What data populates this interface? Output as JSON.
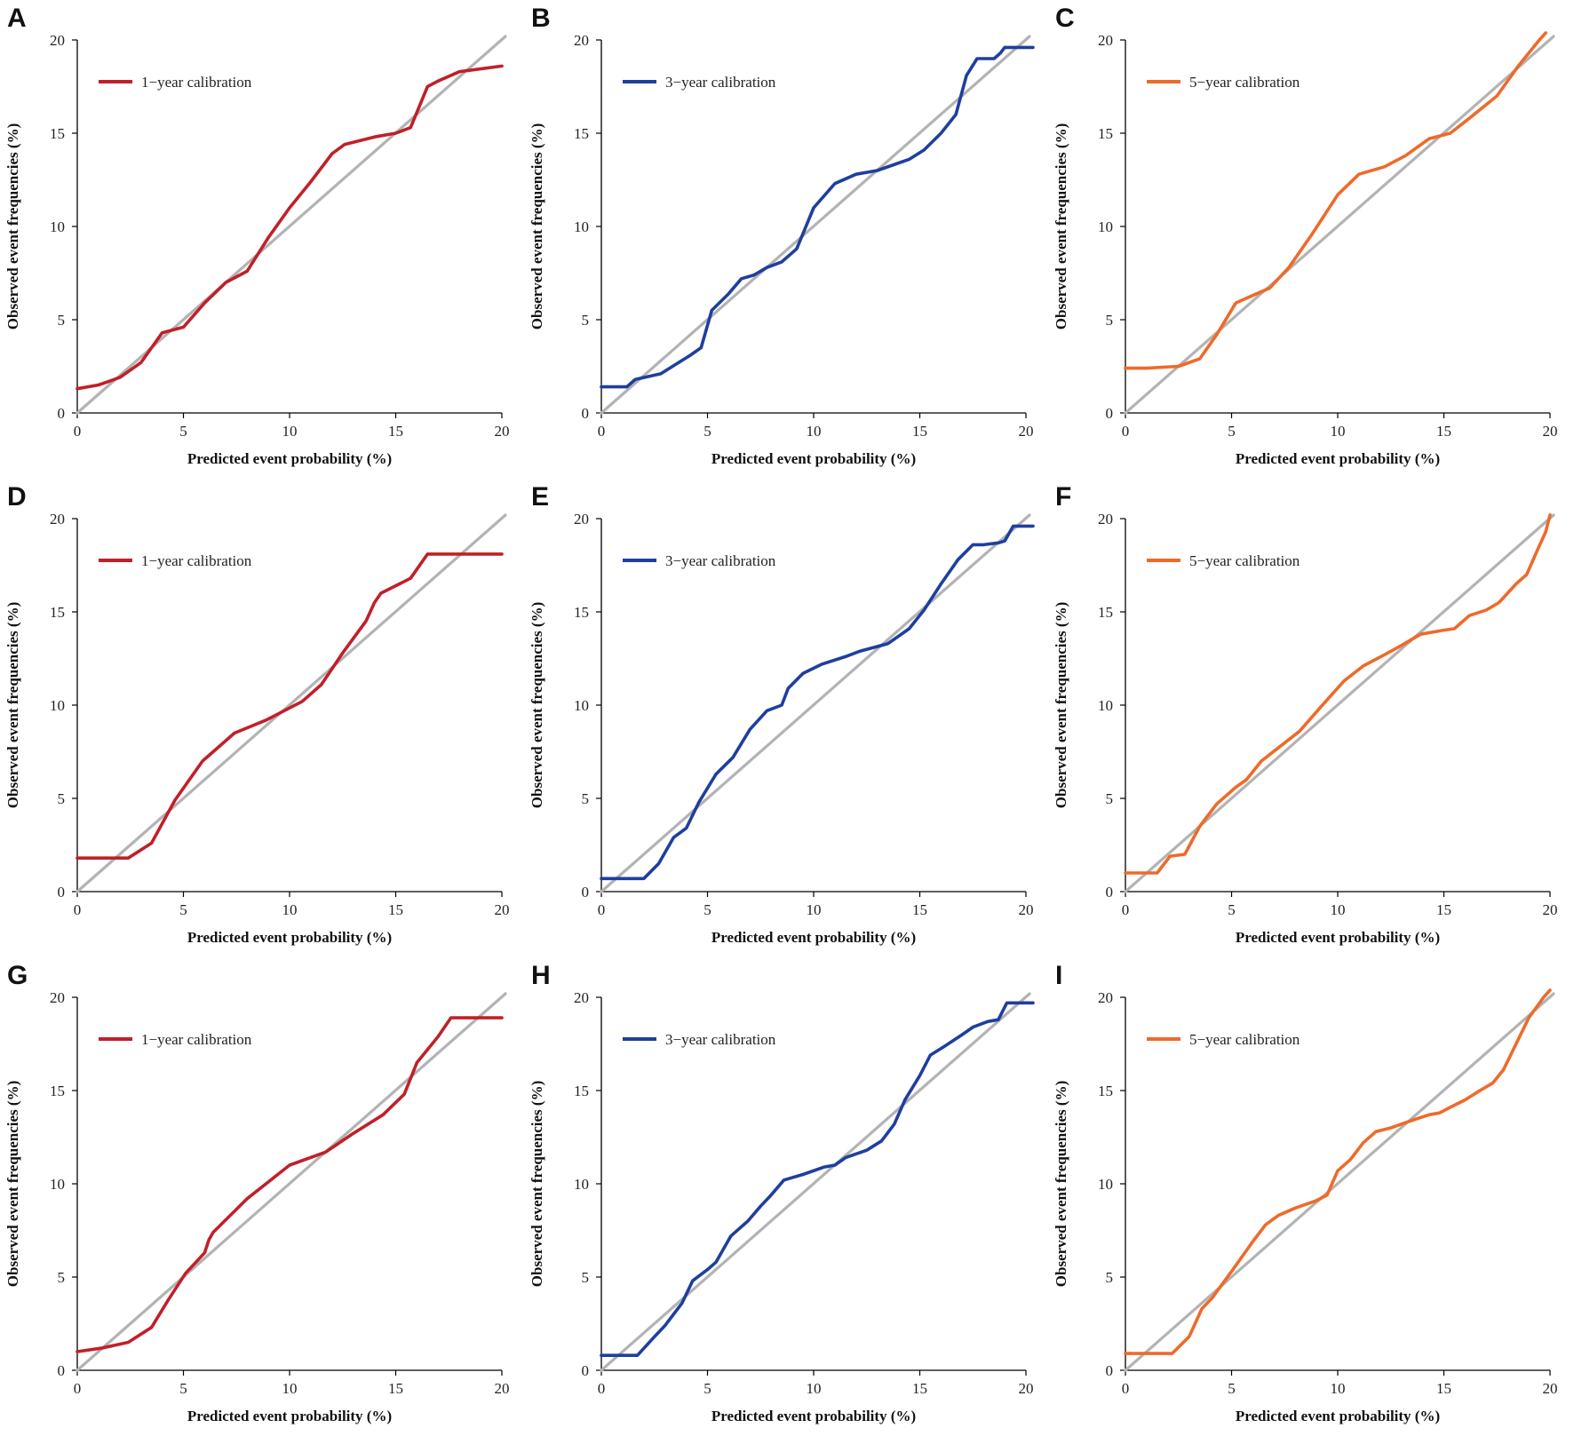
{
  "chart_data": [
    {
      "panel": "A",
      "type": "line",
      "color": "#c0202a",
      "xlabel": "Predicted event probability (%)",
      "ylabel": "Observed event frequencies (%)",
      "xlim": [
        0,
        20
      ],
      "ylim": [
        0,
        20
      ],
      "xticks": [
        "0",
        "5",
        "10",
        "15",
        "20"
      ],
      "yticks": [
        "0",
        "5",
        "10",
        "15",
        "20"
      ],
      "legend": "1−year calibration",
      "reference_line": {
        "color": "#b3b3b3",
        "x": [
          0,
          20
        ],
        "y": [
          0,
          20
        ]
      },
      "series": [
        {
          "name": "1−year calibration",
          "x": [
            0,
            1,
            2,
            3,
            4,
            5,
            6,
            7,
            8,
            9,
            10,
            11,
            12,
            12.6,
            14,
            15,
            15.7,
            16.5,
            17,
            18,
            20
          ],
          "y": [
            1.3,
            1.5,
            1.9,
            2.7,
            4.3,
            4.6,
            5.9,
            7.0,
            7.6,
            9.4,
            11.0,
            12.4,
            13.9,
            14.4,
            14.8,
            15.0,
            15.3,
            17.5,
            17.8,
            18.3,
            18.6
          ]
        }
      ]
    },
    {
      "panel": "B",
      "type": "line",
      "color": "#1e3f9e",
      "xlabel": "Predicted event probability (%)",
      "ylabel": "Observed event frequencies (%)",
      "xlim": [
        0,
        20
      ],
      "ylim": [
        0,
        20
      ],
      "xticks": [
        "0",
        "5",
        "10",
        "15",
        "20"
      ],
      "yticks": [
        "0",
        "5",
        "10",
        "15",
        "20"
      ],
      "legend": "3−year calibration",
      "reference_line": {
        "color": "#b3b3b3",
        "x": [
          0,
          20
        ],
        "y": [
          0,
          20
        ]
      },
      "series": [
        {
          "name": "3−year calibration",
          "x": [
            0,
            1.2,
            1.6,
            2.8,
            3.5,
            4.2,
            4.7,
            5.2,
            6.0,
            6.6,
            7.2,
            7.8,
            8.5,
            9.2,
            10.0,
            11.0,
            12.0,
            13.0,
            14.5,
            15.2,
            16.0,
            16.7,
            17.2,
            17.7,
            18.5,
            18.8,
            19.0,
            19.5,
            20.5
          ],
          "y": [
            1.4,
            1.4,
            1.8,
            2.1,
            2.6,
            3.1,
            3.5,
            5.5,
            6.4,
            7.2,
            7.4,
            7.8,
            8.1,
            8.8,
            11.0,
            12.3,
            12.8,
            13.0,
            13.6,
            14.1,
            15.0,
            16.0,
            18.1,
            19.0,
            19.0,
            19.3,
            19.6,
            19.6,
            19.6
          ]
        }
      ]
    },
    {
      "panel": "C",
      "type": "line",
      "color": "#ee6a2a",
      "xlabel": "Predicted event probability (%)",
      "ylabel": "Observed event frequencies (%)",
      "xlim": [
        0,
        20
      ],
      "ylim": [
        0,
        20
      ],
      "xticks": [
        "0",
        "5",
        "10",
        "15",
        "20"
      ],
      "yticks": [
        "0",
        "5",
        "10",
        "15",
        "20"
      ],
      "legend": "5−year calibration",
      "reference_line": {
        "color": "#b3b3b3",
        "x": [
          0,
          20
        ],
        "y": [
          0,
          20
        ]
      },
      "series": [
        {
          "name": "5−year calibration",
          "x": [
            0,
            1,
            2.5,
            3.5,
            4.3,
            5.2,
            6.0,
            6.8,
            7.7,
            8.8,
            10.0,
            11.0,
            12.2,
            13.2,
            14.3,
            15.3,
            16.2,
            17.5,
            18.5,
            19.5,
            19.8
          ],
          "y": [
            2.4,
            2.4,
            2.5,
            2.9,
            4.2,
            5.9,
            6.3,
            6.7,
            7.8,
            9.6,
            11.7,
            12.8,
            13.2,
            13.8,
            14.7,
            15.0,
            15.8,
            17.0,
            18.6,
            20.0,
            20.4
          ]
        }
      ]
    },
    {
      "panel": "D",
      "type": "line",
      "color": "#c0202a",
      "xlabel": "Predicted event probability (%)",
      "ylabel": "Observed event frequencies (%)",
      "xlim": [
        0,
        20
      ],
      "ylim": [
        0,
        20
      ],
      "xticks": [
        "0",
        "5",
        "10",
        "15",
        "20"
      ],
      "yticks": [
        "0",
        "5",
        "10",
        "15",
        "20"
      ],
      "legend": "1−year calibration",
      "reference_line": {
        "color": "#b3b3b3",
        "x": [
          0,
          20
        ],
        "y": [
          0,
          20
        ]
      },
      "series": [
        {
          "name": "1−year calibration",
          "x": [
            0,
            2.4,
            3.5,
            4.6,
            5.9,
            7.4,
            8.9,
            10.6,
            11.5,
            12.5,
            13.6,
            14.0,
            14.3,
            15.0,
            15.7,
            16.5,
            17.0,
            18.0,
            20.0
          ],
          "y": [
            1.8,
            1.8,
            2.6,
            4.9,
            7.0,
            8.5,
            9.2,
            10.2,
            11.1,
            12.8,
            14.5,
            15.5,
            16.0,
            16.4,
            16.8,
            18.1,
            18.1,
            18.1,
            18.1
          ]
        }
      ]
    },
    {
      "panel": "E",
      "type": "line",
      "color": "#1e3f9e",
      "xlabel": "Predicted event probability (%)",
      "ylabel": "Observed event frequencies (%)",
      "xlim": [
        0,
        20
      ],
      "ylim": [
        0,
        20
      ],
      "xticks": [
        "0",
        "5",
        "10",
        "15",
        "20"
      ],
      "yticks": [
        "0",
        "5",
        "10",
        "15",
        "20"
      ],
      "legend": "3−year calibration",
      "reference_line": {
        "color": "#b3b3b3",
        "x": [
          0,
          20
        ],
        "y": [
          0,
          20
        ]
      },
      "series": [
        {
          "name": "3−year calibration",
          "x": [
            0,
            2.0,
            2.7,
            3.4,
            4.0,
            4.6,
            5.4,
            6.2,
            7.0,
            7.8,
            8.5,
            8.8,
            9.5,
            10.4,
            11.5,
            12.2,
            13.5,
            14.5,
            15.2,
            16.0,
            16.8,
            17.5,
            18.0,
            18.7,
            19.0,
            19.4,
            20.5
          ],
          "y": [
            0.7,
            0.7,
            1.5,
            2.9,
            3.4,
            4.8,
            6.3,
            7.2,
            8.7,
            9.7,
            10.0,
            10.9,
            11.7,
            12.2,
            12.6,
            12.9,
            13.3,
            14.1,
            15.1,
            16.5,
            17.8,
            18.6,
            18.6,
            18.7,
            18.8,
            19.6,
            19.6
          ]
        }
      ]
    },
    {
      "panel": "F",
      "type": "line",
      "color": "#ee6a2a",
      "xlabel": "Predicted event probability (%)",
      "ylabel": "Observed event frequencies (%)",
      "xlim": [
        0,
        20
      ],
      "ylim": [
        0,
        20
      ],
      "xticks": [
        "0",
        "5",
        "10",
        "15",
        "20"
      ],
      "yticks": [
        "0",
        "5",
        "10",
        "15",
        "20"
      ],
      "legend": "5−year calibration",
      "reference_line": {
        "color": "#b3b3b3",
        "x": [
          0,
          20
        ],
        "y": [
          0,
          20
        ]
      },
      "series": [
        {
          "name": "5−year calibration",
          "x": [
            0,
            1.5,
            2.1,
            2.8,
            3.5,
            4.3,
            5.2,
            5.7,
            6.4,
            7.3,
            8.2,
            9.2,
            10.3,
            11.2,
            12.2,
            13.0,
            13.9,
            14.9,
            15.5,
            16.2,
            17.0,
            17.6,
            18.4,
            18.9,
            19.4,
            19.8,
            20.0
          ],
          "y": [
            1.0,
            1.0,
            1.9,
            2.0,
            3.5,
            4.7,
            5.6,
            6.0,
            7.0,
            7.8,
            8.6,
            9.9,
            11.3,
            12.1,
            12.7,
            13.2,
            13.8,
            14.0,
            14.1,
            14.8,
            15.1,
            15.5,
            16.5,
            17.0,
            18.3,
            19.3,
            20.2
          ]
        }
      ]
    },
    {
      "panel": "G",
      "type": "line",
      "color": "#c0202a",
      "xlabel": "Predicted event probability (%)",
      "ylabel": "Observed event frequencies (%)",
      "xlim": [
        0,
        20
      ],
      "ylim": [
        0,
        20
      ],
      "xticks": [
        "0",
        "5",
        "10",
        "15",
        "20"
      ],
      "yticks": [
        "0",
        "5",
        "10",
        "15",
        "20"
      ],
      "legend": "1−year calibration",
      "reference_line": {
        "color": "#b3b3b3",
        "x": [
          0,
          20
        ],
        "y": [
          0,
          20
        ]
      },
      "series": [
        {
          "name": "1−year calibration",
          "x": [
            0,
            1.2,
            2.4,
            3.5,
            4.3,
            5.1,
            6.0,
            6.2,
            6.4,
            8.0,
            10.0,
            11.7,
            13.0,
            14.4,
            15.4,
            16.0,
            17.0,
            17.6,
            18.2,
            20.0
          ],
          "y": [
            1.0,
            1.2,
            1.5,
            2.3,
            3.8,
            5.2,
            6.3,
            7.0,
            7.4,
            9.2,
            11.0,
            11.7,
            12.7,
            13.7,
            14.8,
            16.5,
            17.9,
            18.9,
            18.9,
            18.9
          ]
        }
      ]
    },
    {
      "panel": "H",
      "type": "line",
      "color": "#1e3f9e",
      "xlabel": "Predicted event probability (%)",
      "ylabel": "Observed event frequencies (%)",
      "xlim": [
        0,
        20
      ],
      "ylim": [
        0,
        20
      ],
      "xticks": [
        "0",
        "5",
        "10",
        "15",
        "20"
      ],
      "yticks": [
        "0",
        "5",
        "10",
        "15",
        "20"
      ],
      "legend": "3−year calibration",
      "reference_line": {
        "color": "#b3b3b3",
        "x": [
          0,
          20
        ],
        "y": [
          0,
          20
        ]
      },
      "series": [
        {
          "name": "3−year calibration",
          "x": [
            0,
            1.7,
            2.5,
            3.0,
            3.8,
            4.3,
            5.0,
            5.4,
            6.1,
            6.9,
            7.5,
            8.0,
            8.6,
            9.5,
            10.5,
            11.0,
            11.5,
            12.5,
            13.2,
            13.8,
            14.3,
            15.0,
            15.5,
            16.2,
            17.0,
            17.5,
            18.2,
            18.7,
            19.1,
            20.5
          ],
          "y": [
            0.8,
            0.8,
            1.8,
            2.4,
            3.6,
            4.8,
            5.4,
            5.8,
            7.2,
            8.0,
            8.8,
            9.4,
            10.2,
            10.5,
            10.9,
            11.0,
            11.4,
            11.8,
            12.3,
            13.2,
            14.5,
            15.8,
            16.9,
            17.4,
            18.0,
            18.4,
            18.7,
            18.8,
            19.7,
            19.7
          ]
        }
      ]
    },
    {
      "panel": "I",
      "type": "line",
      "color": "#ee6a2a",
      "xlabel": "Predicted event probability (%)",
      "ylabel": "Observed event frequencies (%)",
      "xlim": [
        0,
        20
      ],
      "ylim": [
        0,
        20
      ],
      "xticks": [
        "0",
        "5",
        "10",
        "15",
        "20"
      ],
      "yticks": [
        "0",
        "5",
        "10",
        "15",
        "20"
      ],
      "legend": "5−year calibration",
      "reference_line": {
        "color": "#b3b3b3",
        "x": [
          0,
          20
        ],
        "y": [
          0,
          20
        ]
      },
      "series": [
        {
          "name": "5−year calibration",
          "x": [
            0,
            2.2,
            3.0,
            3.6,
            4.1,
            5.0,
            6.0,
            6.6,
            7.2,
            8.0,
            9.0,
            9.5,
            10.0,
            10.6,
            11.2,
            11.8,
            12.5,
            13.5,
            14.3,
            14.8,
            15.3,
            16.0,
            16.7,
            17.3,
            17.8,
            18.4,
            19.0,
            19.7,
            20.0
          ],
          "y": [
            0.9,
            0.9,
            1.8,
            3.3,
            3.9,
            5.3,
            6.9,
            7.8,
            8.3,
            8.7,
            9.1,
            9.4,
            10.7,
            11.3,
            12.2,
            12.8,
            13.0,
            13.4,
            13.7,
            13.8,
            14.1,
            14.5,
            15.0,
            15.4,
            16.1,
            17.5,
            18.9,
            20.0,
            20.5
          ]
        }
      ]
    }
  ]
}
